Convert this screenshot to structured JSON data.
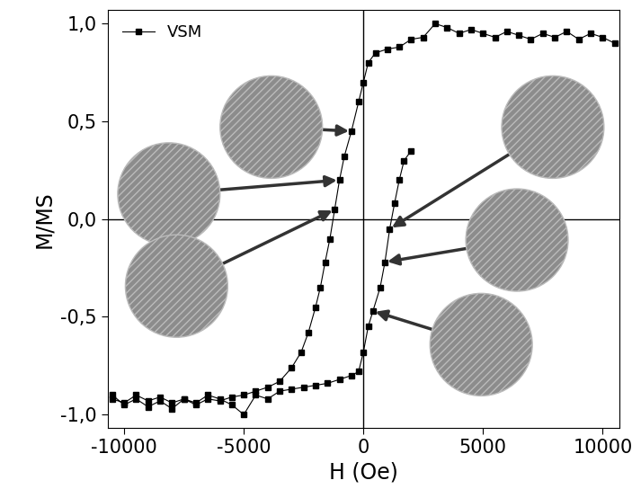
{
  "chart_data": {
    "type": "line",
    "xlabel": "H (Oe)",
    "ylabel": "M/MS",
    "legend": "upper left",
    "marker": "square",
    "line_style": "solid",
    "series": [
      {
        "name": "VSM",
        "color": "#000000",
        "x": [
          10500,
          10000,
          9500,
          9000,
          8500,
          8000,
          7500,
          7000,
          6500,
          6000,
          5500,
          5000,
          4500,
          4000,
          3500,
          3000,
          2500,
          2000,
          1500,
          1000,
          500,
          200,
          0,
          -200,
          -500,
          -800,
          -1000,
          -1200,
          -1400,
          -1600,
          -1800,
          -2000,
          -2300,
          -2600,
          -3000,
          -3500,
          -4000,
          -4500,
          -5000,
          -5500,
          -6000,
          -6500,
          -7000,
          -7500,
          -8000,
          -8500,
          -9000,
          -9500,
          -10000,
          -10500,
          null,
          -10500,
          -10000,
          -9500,
          -9000,
          -8500,
          -8000,
          -7500,
          -7000,
          -6500,
          -6000,
          -5500,
          -5000,
          -4500,
          -4000,
          -3500,
          -3000,
          -2500,
          -2000,
          -1500,
          -1000,
          -500,
          -200,
          0,
          200,
          400,
          700,
          900,
          1100,
          1300,
          1500,
          1700,
          2000
        ],
        "values": [
          0.9,
          0.93,
          0.95,
          0.92,
          0.96,
          0.93,
          0.95,
          0.92,
          0.94,
          0.96,
          0.93,
          0.95,
          0.97,
          0.95,
          0.98,
          1.0,
          0.93,
          0.92,
          0.88,
          0.87,
          0.85,
          0.8,
          0.7,
          0.6,
          0.45,
          0.32,
          0.2,
          0.05,
          -0.1,
          -0.22,
          -0.35,
          -0.45,
          -0.58,
          -0.68,
          -0.76,
          -0.83,
          -0.86,
          -0.88,
          -0.9,
          -0.91,
          -0.93,
          -0.92,
          -0.95,
          -0.92,
          -0.94,
          -0.91,
          -0.93,
          -0.9,
          -0.94,
          -0.92,
          null,
          -0.9,
          -0.95,
          -0.92,
          -0.96,
          -0.93,
          -0.97,
          -0.92,
          -0.94,
          -0.9,
          -0.92,
          -0.95,
          -1.0,
          -0.9,
          -0.92,
          -0.88,
          -0.87,
          -0.86,
          -0.85,
          -0.84,
          -0.82,
          -0.8,
          -0.78,
          -0.68,
          -0.55,
          -0.47,
          -0.35,
          -0.22,
          -0.05,
          0.08,
          0.2,
          0.3,
          0.35
        ]
      }
    ],
    "xlim": [
      -10700,
      10700
    ],
    "ylim": [
      -1.07,
      1.07
    ],
    "xticks": [
      -10000,
      -5000,
      0,
      5000,
      10000
    ],
    "yticks": [
      {
        "value": -1.0,
        "label": "-1,0"
      },
      {
        "value": -0.5,
        "label": "-0,5"
      },
      {
        "value": 0.0,
        "label": "0,0"
      },
      {
        "value": 0.5,
        "label": "0,5"
      },
      {
        "value": 1.0,
        "label": "1,0"
      }
    ],
    "grid": false
  }
}
